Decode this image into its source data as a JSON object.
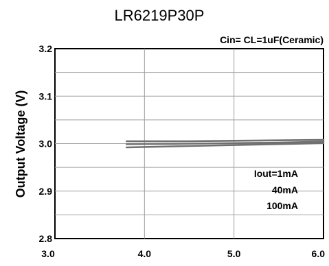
{
  "chart_data": {
    "type": "line",
    "title": "LR6219P30P",
    "condition": "Cin= CL=1uF(Ceramic)",
    "ylabel": "Output Voltage (V)",
    "xlabel": "",
    "xlim": [
      3.0,
      6.0
    ],
    "ylim": [
      2.8,
      3.2
    ],
    "x_ticks": [
      "3.0",
      "4.0",
      "5.0",
      "6.0"
    ],
    "y_ticks": [
      "2.8",
      "2.9",
      "3.0",
      "3.1",
      "3.2"
    ],
    "grid": true,
    "legend": [
      "Iout=1mA",
      "40mA",
      "100mA"
    ],
    "series": [
      {
        "name": "Iout=1mA",
        "color": "#707070",
        "x": [
          3.8,
          4.5,
          5.0,
          5.5,
          6.0
        ],
        "y": [
          3.005,
          3.005,
          3.006,
          3.007,
          3.008
        ]
      },
      {
        "name": "40mA",
        "color": "#707070",
        "x": [
          3.8,
          4.5,
          5.0,
          5.5,
          6.0
        ],
        "y": [
          2.999,
          3.0,
          3.001,
          3.002,
          3.004
        ]
      },
      {
        "name": "100mA",
        "color": "#707070",
        "x": [
          3.8,
          4.5,
          5.0,
          5.5,
          6.0
        ],
        "y": [
          2.992,
          2.995,
          2.997,
          2.999,
          3.001
        ]
      }
    ]
  }
}
